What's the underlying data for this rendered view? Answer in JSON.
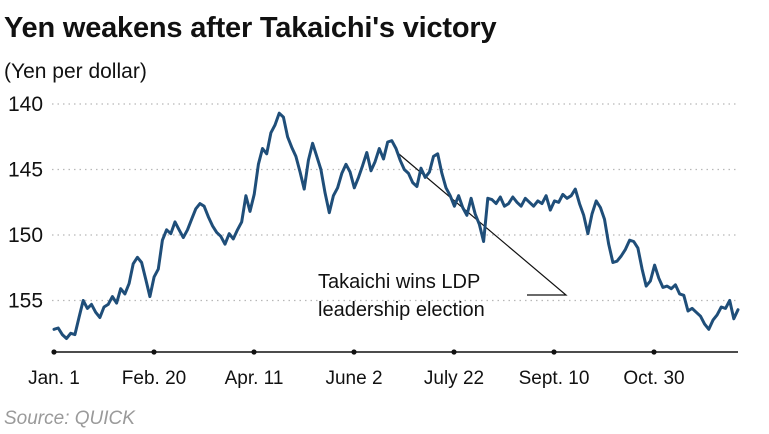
{
  "chart_data": {
    "type": "line",
    "title": "Yen weakens after Takaichi's victory",
    "unit_label": "(Yen per dollar)",
    "y_inverted": true,
    "ylim": [
      157.5,
      140
    ],
    "y_ticks": [
      "140",
      "145",
      "150",
      "155"
    ],
    "x_ticks": [
      "Jan. 1",
      "Feb. 20",
      "Apr. 11",
      "June 2",
      "July 22",
      "Sept. 10",
      "Oct. 30"
    ],
    "grid": "horizontal-dotted",
    "line_color": "#1f4e79",
    "source": "Source: QUICK",
    "annotation": {
      "lines": [
        "Takaichi wins LDP",
        "leadership election"
      ],
      "point_index": 82
    },
    "series": [
      {
        "values": [
          157.2,
          157.1,
          157.6,
          157.9,
          157.5,
          157.6,
          156.3,
          155.0,
          155.6,
          155.3,
          155.9,
          156.3,
          155.5,
          155.3,
          154.7,
          155.2,
          154.1,
          154.5,
          153.7,
          152.2,
          151.7,
          152.1,
          153.4,
          154.7,
          153.2,
          152.6,
          150.4,
          149.6,
          149.9,
          149.0,
          149.6,
          150.2,
          149.6,
          148.8,
          148.0,
          147.6,
          147.8,
          148.6,
          149.3,
          149.8,
          150.1,
          150.7,
          149.9,
          150.3,
          149.6,
          149.0,
          147.0,
          148.2,
          146.9,
          144.6,
          143.4,
          143.8,
          142.2,
          141.6,
          140.7,
          141.0,
          142.5,
          143.3,
          144.0,
          145.2,
          146.5,
          144.3,
          143.0,
          144.0,
          145.0,
          146.8,
          148.3,
          147.0,
          146.4,
          145.3,
          144.6,
          145.2,
          146.4,
          145.6,
          144.7,
          143.7,
          145.1,
          144.4,
          143.4,
          144.2,
          142.9,
          142.8,
          143.4,
          144.3,
          145.0,
          145.3,
          146.0,
          146.3,
          144.9,
          145.6,
          145.2,
          144.0,
          143.8,
          145.3,
          146.4,
          147.0,
          147.8,
          147.0,
          147.9,
          148.5,
          147.2,
          148.4,
          149.2,
          150.5,
          147.2,
          147.3,
          147.6,
          147.1,
          147.8,
          147.6,
          147.1,
          147.5,
          147.8,
          147.2,
          147.5,
          147.8,
          147.4,
          147.6,
          147.0,
          148.1,
          147.4,
          147.5,
          146.9,
          147.2,
          147.0,
          146.5,
          147.6,
          148.5,
          149.9,
          148.4,
          147.4,
          147.9,
          148.8,
          150.7,
          152.1,
          152.0,
          151.6,
          151.1,
          150.4,
          150.5,
          151.0,
          152.6,
          153.9,
          153.5,
          152.3,
          153.3,
          154.0,
          153.9,
          154.1,
          153.8,
          154.5,
          154.6,
          155.8,
          155.6,
          155.9,
          156.2,
          156.8,
          157.2,
          156.5,
          156.1,
          155.5,
          155.6,
          155.0,
          156.4,
          155.7
        ]
      }
    ]
  }
}
